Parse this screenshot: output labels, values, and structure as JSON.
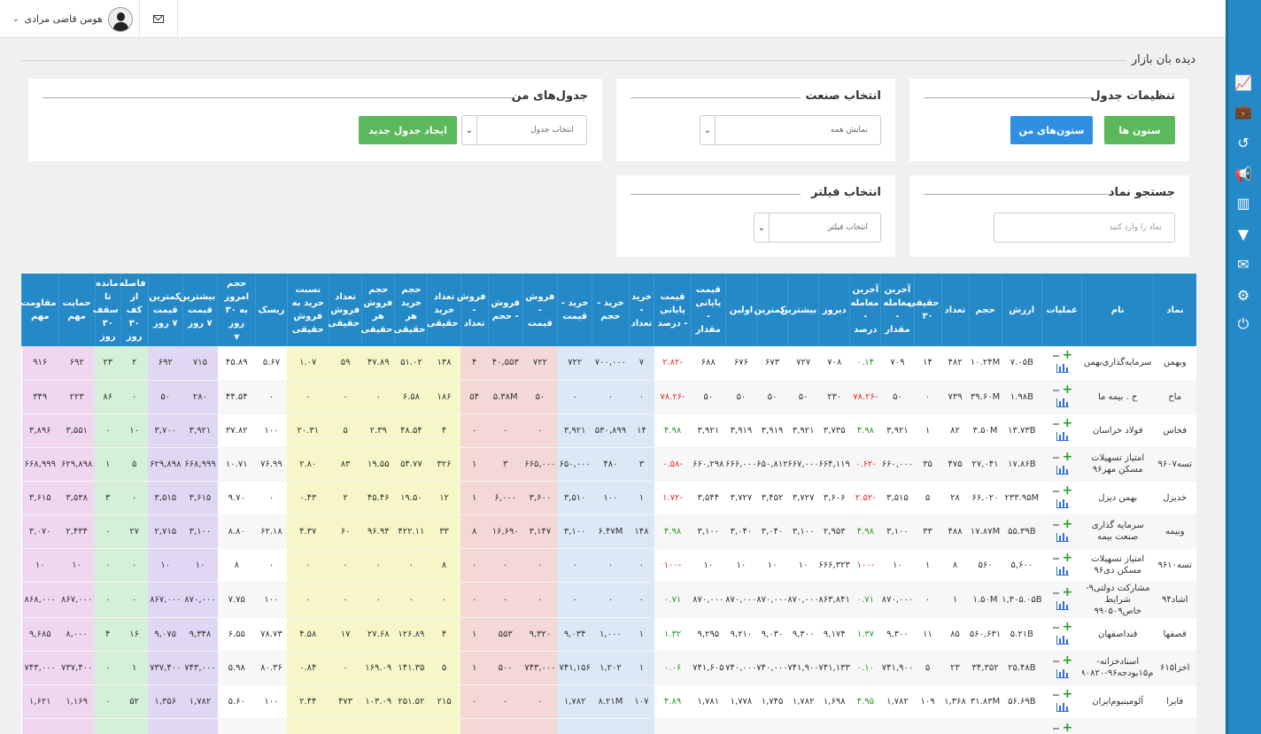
{
  "topbar": {
    "user_name": "هومن قاضی مرادی",
    "user_caret": "⌄",
    "mail_icon": "envelope-icon"
  },
  "page": {
    "title": "دیده بان بازار"
  },
  "panels": {
    "table_settings": {
      "title": "تنظیمات جدول",
      "columns_btn": "ستون ها",
      "my_columns_btn": "ستون‌های من"
    },
    "industry": {
      "title": "انتخاب صنعت",
      "select_value": "نمایش همه"
    },
    "my_tables": {
      "title": "جدول‌های من",
      "select_value": "انتخاب جدول",
      "create_btn": "ایجاد جدول جدید"
    },
    "symbol_search": {
      "title": "جستجو نماد",
      "placeholder": "نماد را وارد کنید"
    },
    "filter": {
      "title": "انتخاب فیلتر",
      "select_value": "انتخاب فیلتر"
    }
  },
  "sidebar": {
    "items": [
      {
        "icon": "line-chart-icon",
        "glyph": "📈",
        "active": true
      },
      {
        "icon": "briefcase-icon",
        "glyph": "💼"
      },
      {
        "icon": "history-icon",
        "glyph": "↺"
      },
      {
        "icon": "bullhorn-icon",
        "glyph": "📢"
      },
      {
        "icon": "columns-icon",
        "glyph": "▥"
      },
      {
        "icon": "filter-icon",
        "glyph": "▼"
      },
      {
        "icon": "envelope-icon",
        "glyph": "✉"
      },
      {
        "icon": "cogs-icon",
        "glyph": "⚙"
      },
      {
        "icon": "power-icon",
        "glyph": "⏻"
      }
    ]
  },
  "colors": {
    "header": "#2489c6",
    "buy_blue": "#dbe8f5",
    "sell_red": "#f4d7d7",
    "yellow": "#f6f6c8",
    "purple": "#e0d7f2",
    "green": "#d4f0d8",
    "pink": "#f0d7f0",
    "positive": "#2a9b2a",
    "negative": "#e02d2d"
  },
  "table": {
    "headers": [
      "نماد",
      "نام",
      "عملیات",
      "ارزش",
      "حجم",
      "تعداد",
      "حقیقی ۳۰",
      "آخرین معامله - مقدار",
      "آخرین معامله - درصد",
      "دیروز",
      "بیشترین",
      "کمترین",
      "اولین",
      "قیمت پایانی - مقدار",
      "قیمت پایانی - درصد",
      "خرید - تعداد",
      "خرید - حجم",
      "خرید - قیمت",
      "فروش - قیمت",
      "فروش - حجم",
      "فروش - تعداد",
      "تعداد خرید حقیقی",
      "حجم خرید هر حقیقی",
      "حجم فروش هر حقیقی",
      "تعداد فروش حقیقی",
      "نسبت خرید به فروش حقیقی",
      "ریسک",
      "حجم امروز به ۳۰ روز",
      "بیشترین قیمت ۷ روز",
      "کمترین قیمت ۷ روز",
      "فاصله از کف ۳۰ روز",
      "مانده تا سقف ۳۰ روز",
      "حمایت مهم",
      "مقاومت مهم"
    ],
    "sort_arrow": "▼",
    "rows": [
      [
        "وبهمن",
        "سرمایه‌گذاری‌بهمن",
        "",
        "۷.۰۵B",
        "۱۰.۲۴M",
        "۴۸۲",
        "۱۴",
        "۷۰۹",
        "۰.۱۴",
        "۷۰۸",
        "۷۲۷",
        "۶۷۳",
        "۶۷۶",
        "۶۸۸",
        "-۲.۸۲",
        "۷",
        "۷۰۰,۰۰۰",
        "۷۲۲",
        "۷۲۲",
        "۴۰,۵۵۳",
        "۴",
        "۱۳۸",
        "۵۱.۰۲",
        "۴۷.۸۹",
        "۵۹",
        "۱.۰۷",
        "۵.۶۷",
        "۴۵.۸۹",
        "۷۱۵",
        "۶۹۲",
        "۲",
        "۲۳",
        "۶۹۲",
        "۹۱۶"
      ],
      [
        "ماح",
        "ح . بیمه ما",
        "",
        "۱.۹۸B",
        "۳۹.۶۰M",
        "۷۳۹",
        "۰",
        "۵۰",
        "-۷۸.۲۶",
        "۲۳۰",
        "۵۰",
        "۵۰",
        "۵۰",
        "۵۰",
        "-۷۸.۲۶",
        "۰",
        "۰",
        "۰",
        "۵۰",
        "۵.۳۸M",
        "۵۴",
        "۱۸۶",
        "۶.۵۸",
        "۰",
        "۰",
        "۰",
        "۰",
        "۴۴.۵۴",
        "۲۸۰",
        "۵۰",
        "۰",
        "۸۶",
        "۲۲۳",
        "۳۴۹"
      ],
      [
        "فخاس",
        "فولاد خراسان",
        "",
        "۱۳.۷۳B",
        "۳.۵۰M",
        "۸۲",
        "۱",
        "۳,۹۲۱",
        "۴.۹۸",
        "۳,۷۳۵",
        "۳,۹۲۱",
        "۳,۹۱۹",
        "۳,۹۱۹",
        "۳,۹۲۱",
        "۴.۹۸",
        "۱۴",
        "۵۳۰,۸۹۹",
        "۳,۹۲۱",
        "۰",
        "۰",
        "۰",
        "۴",
        "۴۸.۵۴",
        "۲.۳۹",
        "۵",
        "۲۰.۳۱",
        "۱۰۰",
        "۳۷.۸۲",
        "۳,۹۲۱",
        "۳,۷۰۰",
        "۱۰",
        "۰",
        "۳,۵۵۱",
        "۳,۸۹۶"
      ],
      [
        "تسه۹۶۰۷",
        "امتیاز تسهیلات مسکن مهر۹۶",
        "",
        "۱۷.۸۶B",
        "۲۷,۰۴۱",
        "۴۷۵",
        "۳۵",
        "۶۶۰,۰۰۰",
        "-۰.۶۲",
        "۶۶۴,۱۱۹",
        "۶۶۷,۰۰۰",
        "۶۵۰,۸۱۲",
        "۶۶۶,۰۰۰",
        "۶۶۰,۲۹۸",
        "-۰.۵۸",
        "۳",
        "۴۸۰",
        "۶۵۰,۰۰۰",
        "۶۶۵,۰۰۰",
        "۳",
        "۱",
        "۳۲۶",
        "۵۴.۷۷",
        "۱۹.۵۵",
        "۸۳",
        "۲.۸۰",
        "۷۶.۹۹",
        "۱۰.۷۱",
        "۶۶۸,۹۹۹",
        "۶۲۹,۸۹۸",
        "۵",
        "۱",
        "۶۲۹,۸۹۸",
        "۶۶۸,۹۹۹"
      ],
      [
        "خدیزل",
        "بهمن دیزل",
        "",
        "۲۳۳.۹۵M",
        "۶۶,۰۲۰",
        "۲۸",
        "۵",
        "۳,۵۱۵",
        "-۲.۵۲",
        "۳,۶۰۶",
        "۳,۷۲۷",
        "۳,۴۵۲",
        "۳,۷۲۷",
        "۳,۵۴۴",
        "-۱.۷۲",
        "۱",
        "۱۰۰",
        "۳,۵۱۰",
        "۳,۶۰۰",
        "۶,۰۰۰",
        "۱",
        "۱۲",
        "۱۹.۵۰",
        "۴۵.۴۶",
        "۲",
        "۰.۴۳",
        "۰",
        "۹.۷۰",
        "۳,۶۱۵",
        "۳,۵۱۵",
        "۰",
        "۳",
        "۳,۵۳۸",
        "۳,۶۱۵"
      ],
      [
        "وبیمه",
        "سرمایه گذاری صنعت بیمه",
        "",
        "۵۵.۳۹B",
        "۱۷.۸۷M",
        "۴۸۸",
        "۳۳",
        "۳,۱۰۰",
        "۴.۹۸",
        "۲,۹۵۳",
        "۳,۱۰۰",
        "۳,۰۴۰",
        "۳,۰۴۰",
        "۳,۱۰۰",
        "۴.۹۸",
        "۱۴۸",
        "۶.۴۷M",
        "۳,۱۰۰",
        "۳,۱۴۷",
        "۱۶,۶۹۰",
        "۸",
        "۳۳",
        "۴۲۲.۱۱",
        "۹۶.۹۴",
        "۶۰",
        "۴.۳۷",
        "۶۲.۱۸",
        "۸.۸۰",
        "۳,۱۰۰",
        "۲,۷۱۵",
        "۲۷",
        "۰",
        "۲,۴۳۴",
        "۳,۰۷۰"
      ],
      [
        "تسه۹۶۱۰",
        "امتیاز تسهیلات مسکن دی۹۶",
        "",
        "۵,۶۰۰",
        "۵۶۰",
        "۸",
        "۱",
        "۱۰",
        "-۱۰۰",
        "۶۶۶,۳۲۳",
        "۱۰",
        "۱۰",
        "۱۰",
        "۱۰",
        "-۱۰۰",
        "۰",
        "۰",
        "۰",
        "۰",
        "۰",
        "۰",
        "۸",
        "۰",
        "۰",
        "۰",
        "۰",
        "۰",
        "۸",
        "۱۰",
        "۱۰",
        "۰",
        "۰",
        "۱۰",
        "۱۰"
      ],
      [
        "اشاد۹۴",
        "مشارکت دولتی۹-شرایط خاص۹۹۰۵۰۹",
        "",
        "۱,۳۰۵.۰۵B",
        "۱.۵۰M",
        "۱",
        "۰",
        "۸۷۰,۰۰۰",
        "۰.۷۱",
        "۸۶۳,۸۴۱",
        "۸۷۰,۰۰۰",
        "۸۷۰,۰۰۰",
        "۸۷۰,۰۰۰",
        "۸۷۰,۰۰۰",
        "۰.۷۱",
        "۰",
        "۰",
        "۰",
        "۰",
        "۰",
        "۰",
        "۰",
        "۰",
        "۰",
        "۰",
        "۰",
        "۱۰۰",
        "۷.۷۵",
        "۸۷۰,۰۰۰",
        "۸۶۷,۰۰۰",
        "۰",
        "۰",
        "۸۶۷,۰۰۰",
        "۸۶۸,۰۰۰"
      ],
      [
        "قصفها",
        "قنداصفهان",
        "",
        "۵.۲۱B",
        "۵۶۰,۶۳۱",
        "۸۵",
        "۱۱",
        "۹,۳۰۰",
        "۱.۳۷",
        "۹,۱۷۴",
        "۹,۳۰۰",
        "۹,۰۳۰",
        "۹,۲۱۰",
        "۹,۲۹۵",
        "۱.۳۲",
        "۱",
        "۱,۰۰۰",
        "۹,۰۳۴",
        "۹,۳۲۰",
        "۵۵۳",
        "۱",
        "۴",
        "۱۲۶.۸۹",
        "۲۷.۶۸",
        "۱۷",
        "۴.۵۸",
        "۷۸.۷۳",
        "۶.۵۵",
        "۹,۳۴۸",
        "۹,۰۷۵",
        "۱۶",
        "۴",
        "۸,۰۰۰",
        "۹,۶۸۵"
      ],
      [
        "اخزا۶۱۵",
        "اسنادخزانه-م۱۵بودجه۹۶-۹۸۰۸۲۰",
        "",
        "۲۵.۴۸B",
        "۳۴,۳۵۲",
        "۲۳",
        "۵",
        "۷۴۱,۹۰۰",
        "۰.۱۰",
        "۷۴۱,۱۳۳",
        "۷۴۱,۹۰۰",
        "۷۴۰,۰۰۰",
        "۷۴۰,۰۰۰",
        "۷۴۱,۶۰۵",
        "۰.۰۶",
        "۱",
        "۱,۲۰۲",
        "۷۴۱,۱۵۶",
        "۷۴۳,۰۰۰",
        "۵۰۰",
        "۱",
        "۵",
        "۱۴۱.۳۵",
        "۱۶۹.۰۹",
        "۰",
        "۰.۸۴",
        "۸۰.۳۶",
        "۵.۹۸",
        "۷۴۳,۰۰۰",
        "۷۳۷,۴۰۰",
        "۱",
        "۰",
        "۷۳۷,۴۰۰",
        "۷۴۳,۰۰۰"
      ],
      [
        "فایرا",
        "آلومینیوم‌ایران",
        "",
        "۵۶.۶۹B",
        "۳۱.۸۳M",
        "۱,۳۶۸",
        "۱۰۹",
        "۱,۷۸۲",
        "۴.۹۵",
        "۱,۶۹۸",
        "۱,۷۸۲",
        "۱,۷۴۵",
        "۱,۷۷۸",
        "۱,۷۸۱",
        "۴.۸۹",
        "۱۰۷",
        "۸.۲۱M",
        "۱,۷۸۲",
        "۰",
        "۰",
        "۰",
        "۲۱۵",
        "۲۵۱.۵۲",
        "۱۰۳.۰۹",
        "۴۷۳",
        "۲.۴۴",
        "۱۰۰",
        "۵.۶۰",
        "۱,۷۸۲",
        "۱,۳۵۶",
        "۵۲",
        "۰",
        "۱,۱۶۹",
        "۱,۶۲۱"
      ],
      [
        "",
        "",
        "",
        "",
        "",
        "",
        "",
        "",
        "",
        "",
        "",
        "",
        "",
        "",
        "",
        "",
        "",
        "",
        "",
        "",
        "",
        "",
        "",
        "",
        "",
        "",
        "",
        "",
        "",
        "",
        "",
        "",
        "",
        ""
      ]
    ]
  }
}
